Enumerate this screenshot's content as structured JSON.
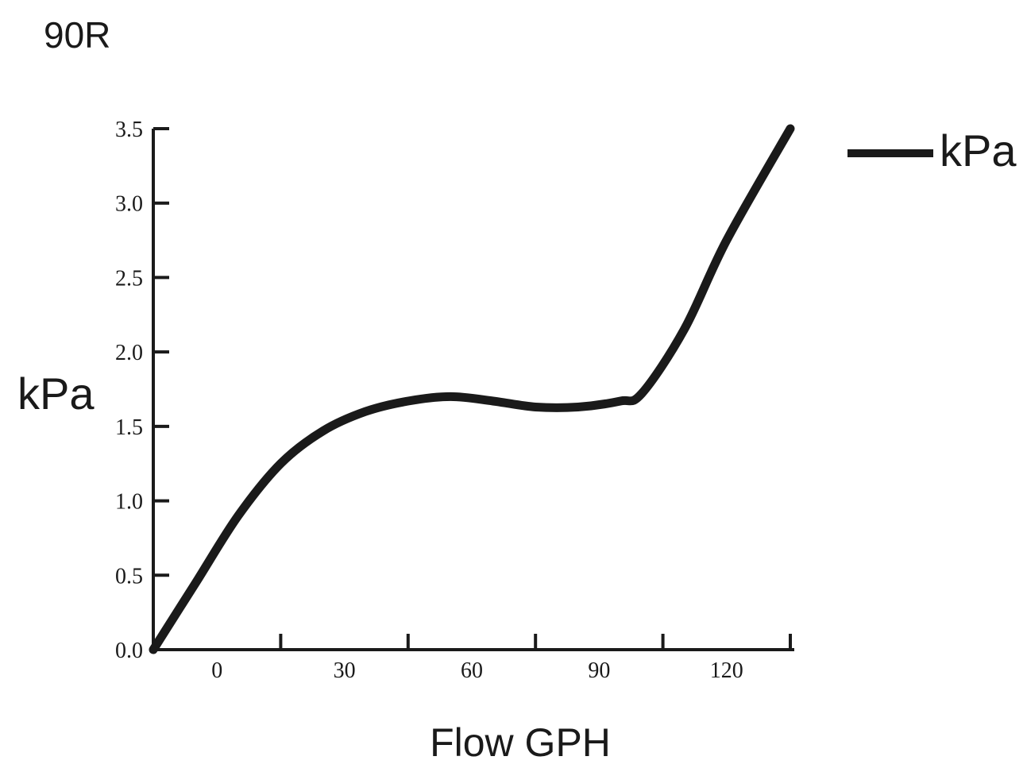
{
  "chart_data": {
    "type": "line",
    "title": "90R",
    "xlabel": "Flow GPH",
    "ylabel": "kPa",
    "x_ticks": [
      "0",
      "30",
      "60",
      "90",
      "120"
    ],
    "y_ticks": [
      "0.0",
      "0.5",
      "1.0",
      "1.5",
      "2.0",
      "2.5",
      "3.0",
      "3.5"
    ],
    "xlim": [
      -15,
      135
    ],
    "ylim": [
      0,
      3.5
    ],
    "grid": false,
    "legend": "top-right",
    "series": [
      {
        "name": "kPa",
        "color": "#1a1a1a",
        "points": [
          [
            -15,
            0.0
          ],
          [
            -5,
            0.45
          ],
          [
            5,
            0.9
          ],
          [
            15,
            1.25
          ],
          [
            25,
            1.47
          ],
          [
            35,
            1.6
          ],
          [
            45,
            1.67
          ],
          [
            55,
            1.7
          ],
          [
            65,
            1.67
          ],
          [
            75,
            1.63
          ],
          [
            85,
            1.63
          ],
          [
            95,
            1.67
          ],
          [
            100,
            1.72
          ],
          [
            110,
            2.15
          ],
          [
            120,
            2.75
          ],
          [
            135,
            3.5
          ]
        ]
      }
    ]
  }
}
